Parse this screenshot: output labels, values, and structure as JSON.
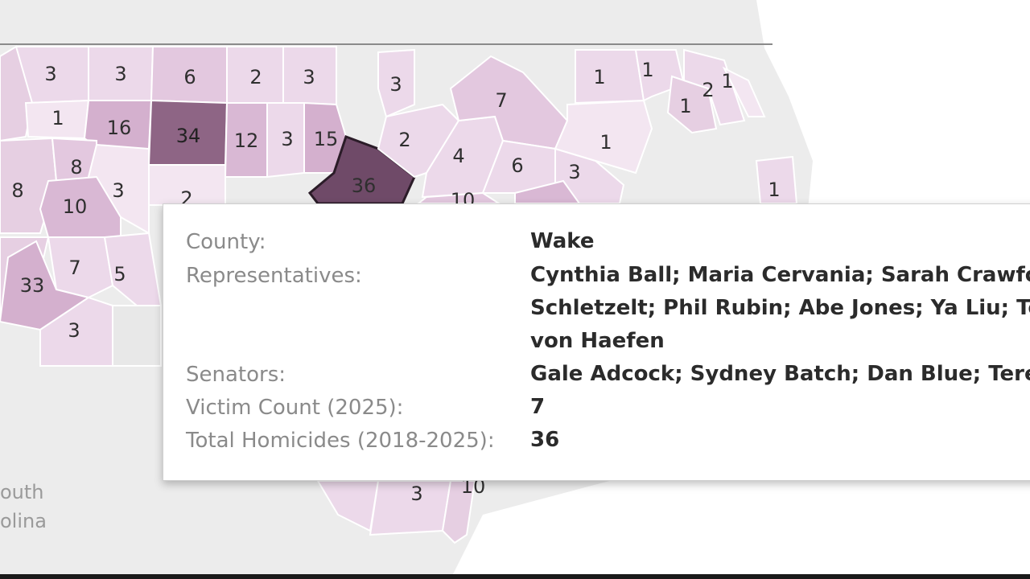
{
  "map": {
    "colors": {
      "background": "#ececec",
      "county_light": "#ecd9ea",
      "county_mid": "#d9b8d4",
      "county_dark": "#8e6585",
      "county_selected": "#6f4a68",
      "border": "#ffffff"
    },
    "region_labels": [
      "outh",
      "olina"
    ],
    "county_values": [
      "3",
      "3",
      "6",
      "2",
      "3",
      "3",
      "1",
      "1",
      "2",
      "1",
      "1",
      "16",
      "34",
      "12",
      "3",
      "15",
      "2",
      "7",
      "1",
      "1",
      "8",
      "3",
      "36",
      "4",
      "6",
      "3",
      "1",
      "8",
      "10",
      "10",
      "7",
      "5",
      "33",
      "3",
      "3",
      "10",
      "2"
    ]
  },
  "tooltip": {
    "rows": [
      {
        "label": "County:",
        "value": "Wake"
      },
      {
        "label": "Representatives:",
        "value_lines": [
          "Cynthia Ball; Maria Cervania; Sarah Crawford",
          "Schletzelt; Phil Rubin; Abe Jones; Ya Liu; Tom",
          "von Haefen"
        ]
      },
      {
        "label": "Senators:",
        "value": "Gale Adcock; Sydney Batch; Dan Blue; Terence"
      },
      {
        "label": "Victim Count (2025):",
        "value": "7"
      },
      {
        "label": "Total Homicides (2018-2025):",
        "value": "36"
      }
    ]
  }
}
